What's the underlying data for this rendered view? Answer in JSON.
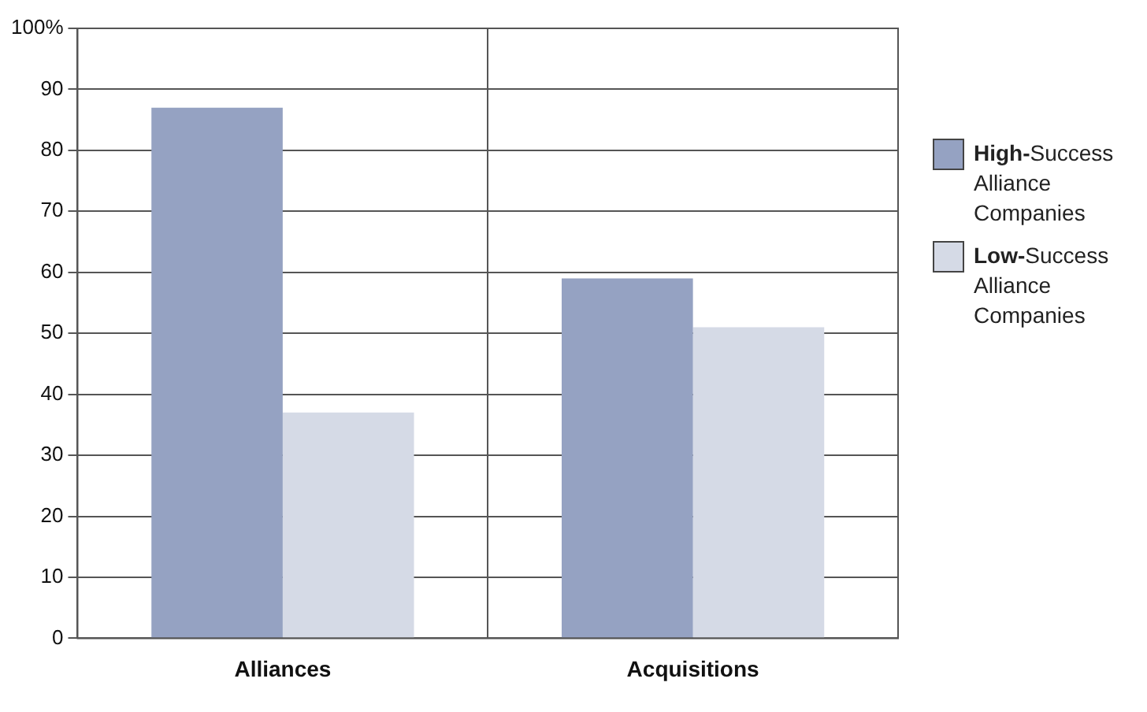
{
  "chart_data": {
    "type": "bar",
    "categories": [
      "Alliances",
      "Acquisitions"
    ],
    "series": [
      {
        "name": "High-Success Alliance Companies",
        "color": "#95a2c2",
        "values": [
          87,
          59
        ]
      },
      {
        "name": "Low-Success Alliance Companies",
        "color": "#d5dae6",
        "values": [
          37,
          51
        ]
      }
    ],
    "ylim": [
      0,
      100
    ],
    "yticks": [
      0,
      10,
      20,
      30,
      40,
      50,
      60,
      70,
      80,
      90,
      {
        "value": 100,
        "label": "100%"
      }
    ],
    "grid": true,
    "legend": "right"
  }
}
